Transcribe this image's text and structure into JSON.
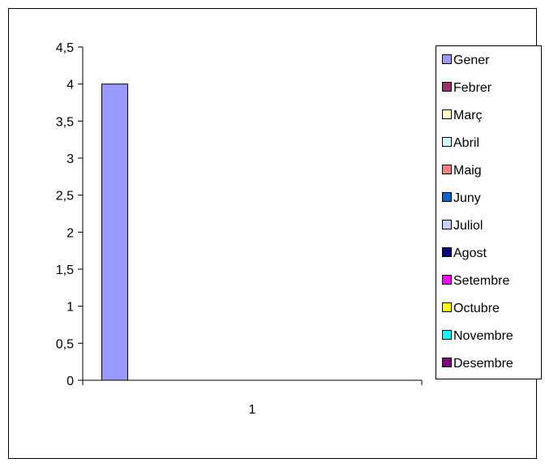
{
  "chart_data": {
    "type": "bar",
    "categories": [
      "1"
    ],
    "series": [
      {
        "name": "Gener",
        "values": [
          4
        ],
        "color": "#9999FF"
      },
      {
        "name": "Febrer",
        "values": [
          0
        ],
        "color": "#993366"
      },
      {
        "name": "Març",
        "values": [
          0
        ],
        "color": "#FFFFCC"
      },
      {
        "name": "Abril",
        "values": [
          0
        ],
        "color": "#CCFFFF"
      },
      {
        "name": "Maig",
        "values": [
          0
        ],
        "color": "#FF8080"
      },
      {
        "name": "Juny",
        "values": [
          0
        ],
        "color": "#0066CC"
      },
      {
        "name": "Juliol",
        "values": [
          0
        ],
        "color": "#CCCCFF"
      },
      {
        "name": "Agost",
        "values": [
          0
        ],
        "color": "#000080"
      },
      {
        "name": "Setembre",
        "values": [
          0
        ],
        "color": "#FF00FF"
      },
      {
        "name": "Octubre",
        "values": [
          0
        ],
        "color": "#FFFF00"
      },
      {
        "name": "Novembre",
        "values": [
          0
        ],
        "color": "#00FFFF"
      },
      {
        "name": "Desembre",
        "values": [
          0
        ],
        "color": "#800080"
      }
    ],
    "ylim": [
      0,
      4.5
    ],
    "yticks": [
      "0",
      "0,5",
      "1",
      "1,5",
      "2",
      "2,5",
      "3",
      "3,5",
      "4",
      "4,5"
    ],
    "grid": false,
    "legend_position": "right"
  }
}
